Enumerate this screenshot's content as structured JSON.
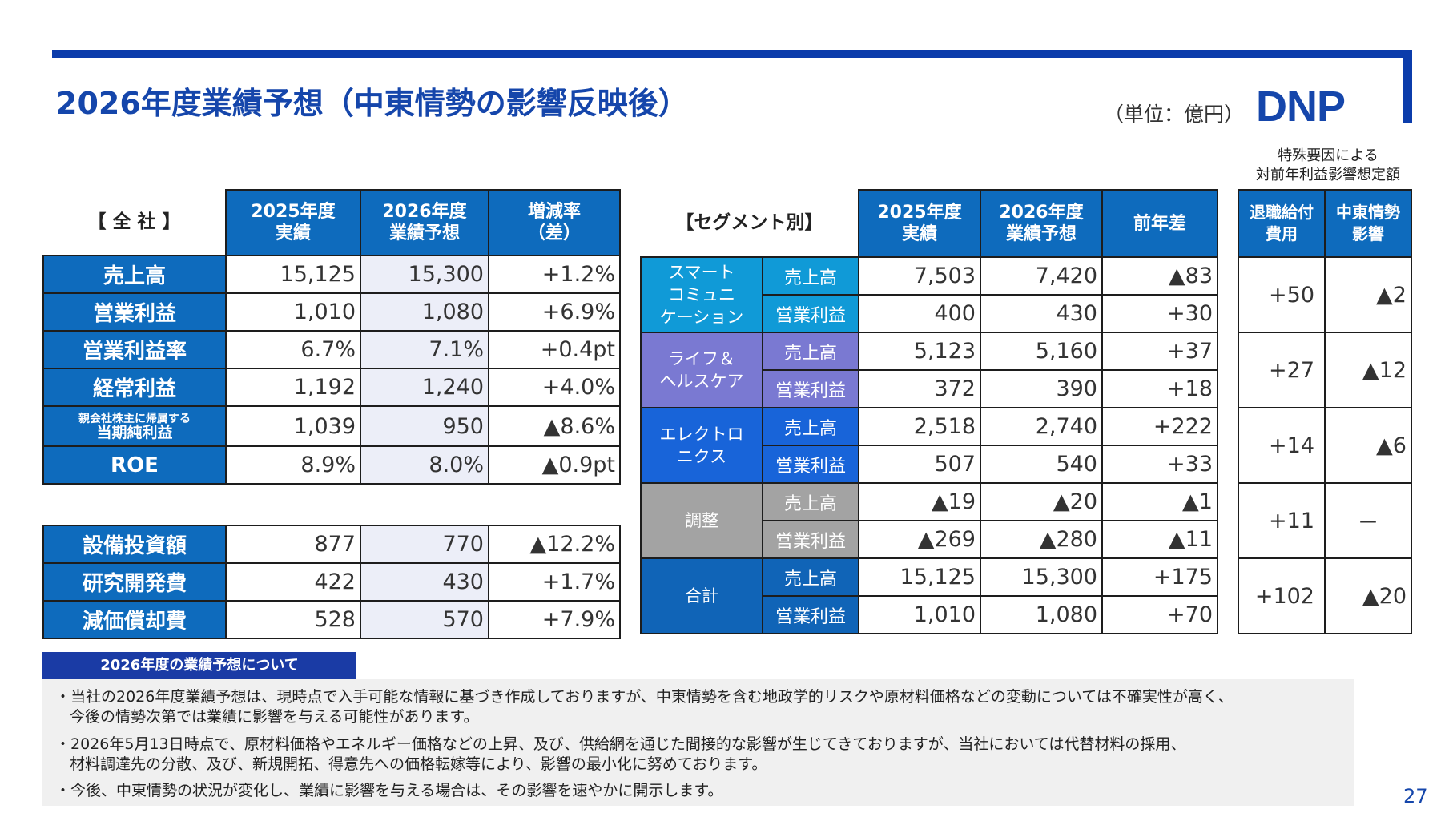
{
  "header": {
    "title": "2026年度業績予想（中東情勢の影響反映後）",
    "unit": "（単位：億円）",
    "logo": "DNP",
    "special_note": [
      "特殊要因による",
      "対前年利益影響想定額"
    ]
  },
  "company": {
    "label": "【 全 社 】",
    "col1": [
      "2025年度",
      "実績"
    ],
    "col2": [
      "2026年度",
      "業績予想"
    ],
    "col3": [
      "増減率",
      "（差）"
    ],
    "rows": [
      {
        "label": "売上高",
        "v2025": "15,125",
        "v2026": "15,300",
        "chg": "+1.2%"
      },
      {
        "label": "営業利益",
        "v2025": "1,010",
        "v2026": "1,080",
        "chg": "+6.9%"
      },
      {
        "label": "営業利益率",
        "v2025": "6.7%",
        "v2026": "7.1%",
        "chg": "+0.4pt"
      },
      {
        "label": "経常利益",
        "v2025": "1,192",
        "v2026": "1,240",
        "chg": "+4.0%"
      },
      {
        "label_small": "親会社株主に帰属する",
        "label_main": "当期純利益",
        "v2025": "1,039",
        "v2026": "950",
        "chg": "▲8.6%"
      },
      {
        "label": "ROE",
        "v2025": "8.9%",
        "v2026": "8.0%",
        "chg": "▲0.9pt"
      }
    ],
    "capex": [
      {
        "label": "設備投資額",
        "v2025": "877",
        "v2026": "770",
        "chg": "▲12.2%"
      },
      {
        "label": "研究開発費",
        "v2025": "422",
        "v2026": "430",
        "chg": "+1.7%"
      },
      {
        "label": "減価償却費",
        "v2025": "528",
        "v2026": "570",
        "chg": "+7.9%"
      }
    ]
  },
  "segment": {
    "label": "【セグメント別】",
    "col1": [
      "2025年度",
      "実績"
    ],
    "col2": [
      "2026年度",
      "業績予想"
    ],
    "col3": "前年差",
    "sales_label": "売上高",
    "op_label": "営業利益",
    "groups": [
      {
        "name": [
          "スマート",
          "コミュニ",
          "ケーション"
        ],
        "color": "#109ad7",
        "sales": [
          "7,503",
          "7,420",
          "▲83"
        ],
        "op": [
          "400",
          "430",
          "+30"
        ]
      },
      {
        "name": [
          "ライフ＆",
          "ヘルスケア"
        ],
        "color": "#7a79d2",
        "sales": [
          "5,123",
          "5,160",
          "+37"
        ],
        "op": [
          "372",
          "390",
          "+18"
        ]
      },
      {
        "name": [
          "エレクトロ",
          "ニクス"
        ],
        "color": "#1864d9",
        "sales": [
          "2,518",
          "2,740",
          "+222"
        ],
        "op": [
          "507",
          "540",
          "+33"
        ]
      },
      {
        "name": [
          "調整"
        ],
        "color": "#a3a3a3",
        "sales": [
          "▲19",
          "▲20",
          "▲1"
        ],
        "op": [
          "▲269",
          "▲280",
          "▲11"
        ]
      },
      {
        "name": [
          "合計"
        ],
        "color": "#1064b7",
        "sales": [
          "15,125",
          "15,300",
          "+175"
        ],
        "op": [
          "1,010",
          "1,080",
          "+70"
        ]
      }
    ]
  },
  "special": {
    "col1": [
      "退職給付",
      "費用"
    ],
    "col2": [
      "中東情勢",
      "影響"
    ],
    "rows": [
      {
        "retire": "+50",
        "mideast": "▲2"
      },
      {
        "retire": "+27",
        "mideast": "▲12"
      },
      {
        "retire": "+14",
        "mideast": "▲6"
      },
      {
        "retire": "+11",
        "mideast": "－"
      },
      {
        "retire": "+102",
        "mideast": "▲20"
      }
    ]
  },
  "info": {
    "heading": "2026年度の業績予想について",
    "lines": [
      "・当社の2026年度業績予想は、現時点で入手可能な情報に基づき作成しておりますが、中東情勢を含む地政学的リスクや原材料価格などの変動については不確実性が高く、",
      "今後の情勢次第では業績に影響を与える可能性があります。",
      "・2026年5月13日時点で、原材料価格やエネルギー価格などの上昇、及び、供給網を通じた間接的な影響が生じてきておりますが、当社においては代替材料の採用、",
      "材料調達先の分散、及び、新規開拓、得意先への価格転嫁等により、影響の最小化に努めております。",
      "・今後、中東情勢の状況が変化し、業績に影響を与える場合は、その影響を速やかに開示します。"
    ]
  },
  "page_number": "27"
}
